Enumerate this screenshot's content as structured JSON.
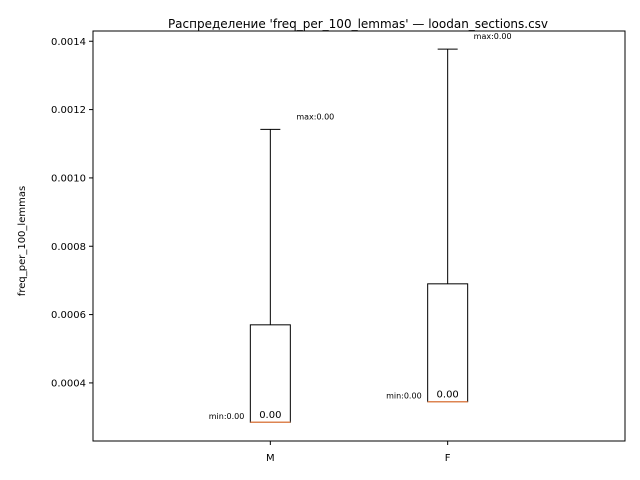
{
  "chart_data": {
    "type": "box",
    "title": "Распределение 'freq_per_100_lemmas' — loodan_sections.csv",
    "xlabel": "",
    "ylabel": "freq_per_100_lemmas",
    "ylim": [
      0.00023,
      0.00143
    ],
    "yticks": [
      0.0004,
      0.0006,
      0.0008,
      0.001,
      0.0012,
      0.0014
    ],
    "ytick_labels": [
      "0.0004",
      "0.0006",
      "0.0008",
      "0.0010",
      "0.0012",
      "0.0014"
    ],
    "grid": false,
    "categories": [
      "M",
      "F"
    ],
    "boxes": [
      {
        "category": "M",
        "min": 0.000285,
        "q1": 0.000285,
        "median": 0.000285,
        "q3": 0.00057,
        "max": 0.001142,
        "min_label": "min:0.00",
        "max_label": "max:0.00",
        "median_label": "0.00"
      },
      {
        "category": "F",
        "min": 0.000345,
        "q1": 0.000345,
        "median": 0.000345,
        "q3": 0.00069,
        "max": 0.001377,
        "min_label": "min:0.00",
        "max_label": "max:0.00",
        "median_label": "0.00"
      }
    ],
    "colors": {
      "box": "#000000",
      "median": "#dd8452",
      "whisker": "#000000"
    }
  }
}
